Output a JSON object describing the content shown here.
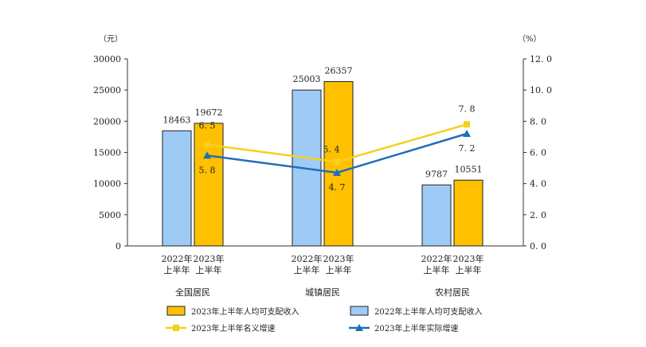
{
  "chart_data": {
    "type": "bar",
    "left_axis": {
      "unit": "（元）",
      "ylim": [
        0,
        30000
      ],
      "ticks": [
        0,
        5000,
        10000,
        15000,
        20000,
        25000,
        30000
      ]
    },
    "right_axis": {
      "unit": "（%）",
      "ylim": [
        0,
        12
      ],
      "ticks": [
        "0.0",
        "2.0",
        "4.0",
        "6.0",
        "8.0",
        "10.0",
        "12.0"
      ]
    },
    "categories": [
      {
        "name": "全国居民",
        "sub": [
          "2022年",
          "2023年"
        ],
        "sub2": [
          "上半年",
          "上半年"
        ]
      },
      {
        "name": "城镇居民",
        "sub": [
          "2022年",
          "2023年"
        ],
        "sub2": [
          "上半年",
          "上半年"
        ]
      },
      {
        "name": "农村居民",
        "sub": [
          "2022年",
          "2023年"
        ],
        "sub2": [
          "上半年",
          "上半年"
        ]
      }
    ],
    "bar_series": [
      {
        "name": "2022年上半年人均可支配收入",
        "color": "#9ecbf5",
        "values": [
          18463,
          25003,
          9787
        ],
        "labels": [
          "18463",
          "25003",
          "9787"
        ]
      },
      {
        "name": "2023年上半年人均可支配收入",
        "color": "#ffc000",
        "values": [
          19672,
          26357,
          10551
        ],
        "labels": [
          "19672",
          "26357",
          "10551"
        ]
      }
    ],
    "line_series": [
      {
        "name": "2023年上半年名义增速",
        "color": "#f5d11c",
        "marker": "square",
        "values": [
          6.5,
          5.4,
          7.8
        ],
        "labels": [
          "6.5",
          "5.4",
          "7.8"
        ]
      },
      {
        "name": "2023年上半年实际增速",
        "color": "#1f6fb9",
        "marker": "triangle",
        "values": [
          5.8,
          4.7,
          7.2
        ],
        "labels": [
          "5.8",
          "4.7",
          "7.2"
        ]
      }
    ],
    "legend": {
      "placement": "bottom",
      "order": [
        {
          "label": "2023年上半年人均可支配收入",
          "kind": "bar",
          "color": "#ffc000"
        },
        {
          "label": "2022年上半年人均可支配收入",
          "kind": "bar",
          "color": "#9ecbf5"
        },
        {
          "label": "2023年上半年名义增速",
          "kind": "line",
          "marker": "square",
          "color": "#f5d11c"
        },
        {
          "label": "2023年上半年实际增速",
          "kind": "line",
          "marker": "triangle",
          "color": "#1f6fb9"
        }
      ]
    }
  }
}
